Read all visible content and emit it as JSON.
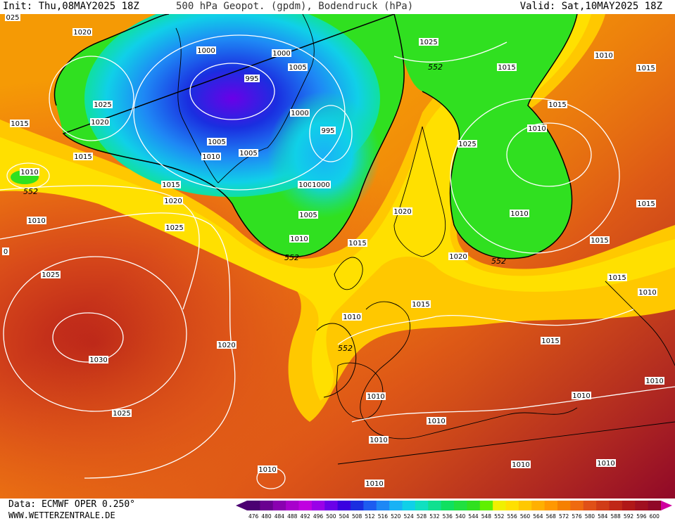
{
  "header": {
    "init": "Init: Thu,08MAY2025 18Z",
    "title": "500 hPa Geopot. (gpdm), Bodendruck (hPa)",
    "valid": "Valid: Sat,10MAY2025 18Z"
  },
  "footer": {
    "data_source": "Data: ECMWF OPER 0.250°",
    "website": "WWW.WETTERZENTRALE.DE"
  },
  "legend": {
    "values": [
      "476",
      "480",
      "484",
      "488",
      "492",
      "496",
      "500",
      "504",
      "508",
      "512",
      "516",
      "520",
      "524",
      "528",
      "532",
      "536",
      "540",
      "544",
      "548",
      "552",
      "556",
      "560",
      "564",
      "568",
      "572",
      "576",
      "580",
      "584",
      "588",
      "592",
      "596",
      "600"
    ],
    "colors": [
      "#4b0072",
      "#6a0090",
      "#8a00b0",
      "#a800cc",
      "#c000e0",
      "#9a00e8",
      "#6a00e8",
      "#3a00e0",
      "#1a2ee0",
      "#1d5cf0",
      "#1e88f5",
      "#19b2f5",
      "#10d0e8",
      "#10e0c0",
      "#10e090",
      "#10e060",
      "#20e040",
      "#30e020",
      "#60f000",
      "#f0f000",
      "#ffe000",
      "#ffc800",
      "#ffb000",
      "#ff9800",
      "#f58000",
      "#ef6a10",
      "#e05018",
      "#d03c18",
      "#c02818",
      "#b01818",
      "#a01020",
      "#900828"
    ],
    "start_arrow_color": "#4b0072",
    "end_arrow_color": "#d000a0"
  },
  "map": {
    "height_label": "552",
    "isobar_labels": [
      "1020",
      "1025",
      "1020",
      "1015",
      "1015",
      "1015",
      "1020",
      "1010",
      "1025",
      "1025",
      "1030",
      "1020",
      "1025",
      "1010",
      "1000",
      "1000",
      "995",
      "1005",
      "1000",
      "995",
      "1005",
      "1005",
      "1010",
      "1005",
      "1000",
      "1005",
      "1010",
      "1025",
      "1020",
      "1025",
      "1015",
      "1010",
      "1015",
      "1015",
      "1020",
      "1010",
      "1015",
      "1015",
      "1010",
      "1015",
      "1015",
      "1015",
      "1010",
      "1010",
      "1010",
      "1015",
      "1010",
      "1010",
      "1010",
      "1010",
      "1010",
      "1010",
      "1010",
      "1010",
      "025",
      "0"
    ]
  }
}
